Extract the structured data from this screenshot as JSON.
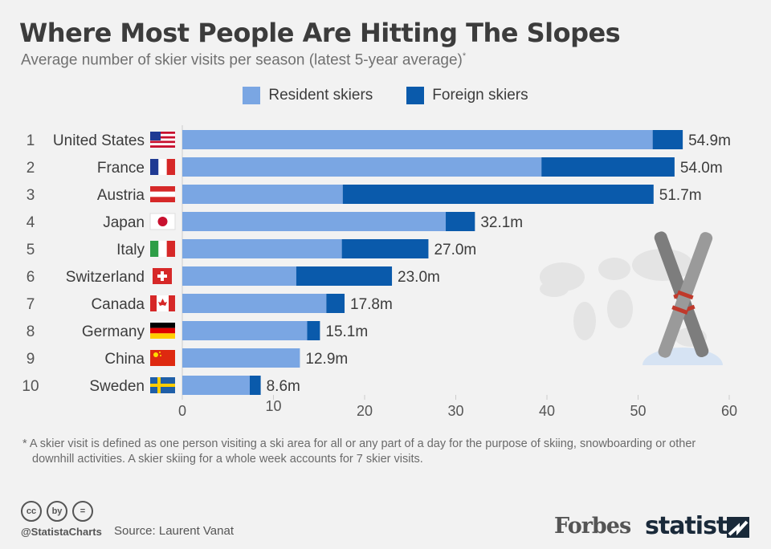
{
  "title": "Where Most People Are Hitting The Slopes",
  "subtitle": "Average number of skier visits per season (latest 5-year average)",
  "subtitle_mark": "*",
  "colors": {
    "resident": "#7aa6e3",
    "foreign": "#0a5aab",
    "axis": "#cccccc",
    "text": "#3c3c3c"
  },
  "chart_data": {
    "type": "bar",
    "orientation": "horizontal",
    "stacked": true,
    "unit": "m",
    "legend_position": "top-center",
    "xlim": [
      0,
      60
    ],
    "x_ticks": [
      "0",
      "10",
      "20",
      "30",
      "40",
      "50",
      "60"
    ],
    "ranks": [
      "1",
      "2",
      "3",
      "4",
      "5",
      "6",
      "7",
      "8",
      "9",
      "10"
    ],
    "categories": [
      "United States",
      "France",
      "Austria",
      "Japan",
      "Italy",
      "Switzerland",
      "Canada",
      "Germany",
      "China",
      "Sweden"
    ],
    "series": [
      {
        "name": "Resident skiers",
        "values": [
          51.6,
          39.4,
          17.6,
          28.9,
          17.5,
          12.5,
          15.8,
          13.7,
          12.9,
          7.4
        ]
      },
      {
        "name": "Foreign skiers",
        "values": [
          3.3,
          14.6,
          34.1,
          3.2,
          9.5,
          10.5,
          2.0,
          1.4,
          0.0,
          1.2
        ]
      }
    ],
    "total_labels": [
      "54.9m",
      "54.0m",
      "51.7m",
      "32.1m",
      "27.0m",
      "23.0m",
      "17.8m",
      "15.1m",
      "12.9m",
      "8.6m"
    ],
    "flags": [
      "us-flag",
      "fr-flag",
      "at-flag",
      "jp-flag",
      "it-flag",
      "ch-flag",
      "ca-flag",
      "de-flag",
      "cn-flag",
      "se-flag"
    ]
  },
  "footnote": "* A skier visit is defined as one person visiting a ski area for all or any part of a day for the purpose of skiing, snowboarding or other downhill activities. A skier skiing for a whole week accounts for 7 skier visits.",
  "footer": {
    "cc_icons": [
      "cc",
      "by",
      "="
    ],
    "handle": "@StatistaCharts",
    "source": "Source: Laurent Vanat",
    "forbes": "Forbes",
    "statista": "statista"
  }
}
